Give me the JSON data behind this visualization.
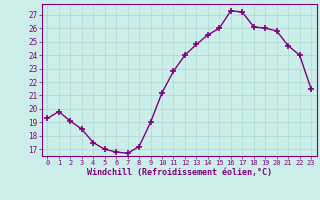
{
  "x": [
    0,
    1,
    2,
    3,
    4,
    5,
    6,
    7,
    8,
    9,
    10,
    11,
    12,
    13,
    14,
    15,
    16,
    17,
    18,
    19,
    20,
    21,
    22,
    23
  ],
  "y": [
    19.3,
    19.8,
    19.1,
    18.5,
    17.5,
    17.0,
    16.8,
    16.7,
    17.2,
    19.0,
    21.2,
    22.8,
    24.0,
    24.8,
    25.5,
    26.0,
    27.3,
    27.2,
    26.1,
    26.0,
    25.8,
    24.7,
    24.0,
    21.5
  ],
  "line_color": "#800080",
  "marker": "+",
  "marker_size": 4,
  "bg_color": "#cceee8",
  "grid_color": "#aad8d0",
  "xlabel": "Windchill (Refroidissement éolien,°C)",
  "ylabel_ticks": [
    17,
    18,
    19,
    20,
    21,
    22,
    23,
    24,
    25,
    26,
    27
  ],
  "xlim": [
    -0.5,
    23.5
  ],
  "ylim": [
    16.5,
    27.8
  ],
  "xlabel_color": "#800080",
  "tick_color": "#800080",
  "spine_color": "#800080",
  "lw": 1.0,
  "xlabel_fontsize": 6.0,
  "xtick_fontsize": 5.0,
  "ytick_fontsize": 5.5
}
